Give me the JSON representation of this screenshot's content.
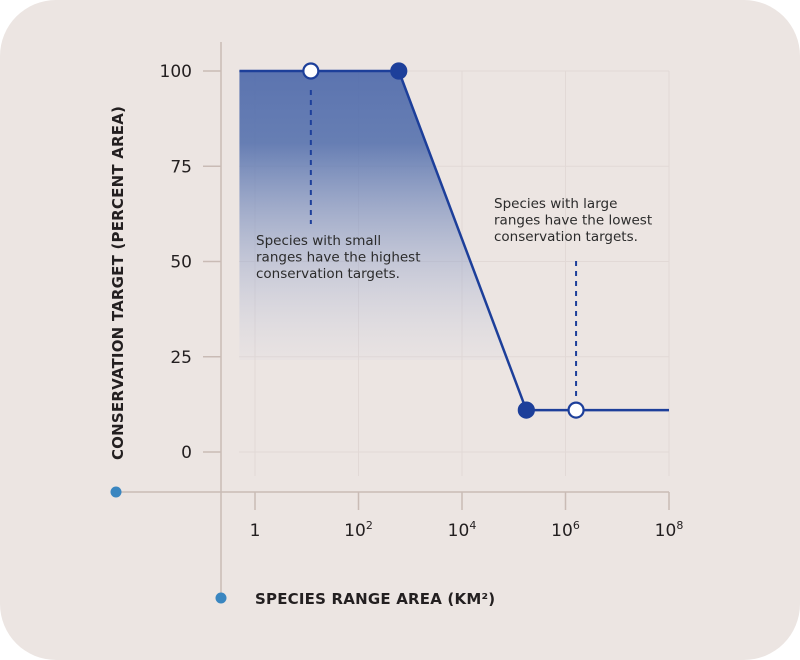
{
  "chart_data": {
    "type": "line",
    "xlabel": "SPECIES RANGE AREA (KM²)",
    "ylabel": "CONSERVATION TARGET (PERCENT AREA)",
    "x_scale": "log",
    "xlim": [
      0.5,
      100000000
    ],
    "ylim": [
      0,
      100
    ],
    "x_ticks": [
      {
        "value": 1,
        "base": "1",
        "exp": ""
      },
      {
        "value": 100,
        "base": "10",
        "exp": "2"
      },
      {
        "value": 10000,
        "base": "10",
        "exp": "4"
      },
      {
        "value": 1000000,
        "base": "10",
        "exp": "6"
      },
      {
        "value": 100000000,
        "base": "10",
        "exp": "8"
      }
    ],
    "y_ticks": [
      {
        "value": 0,
        "label": "0"
      },
      {
        "value": 25,
        "label": "25"
      },
      {
        "value": 50,
        "label": "50"
      },
      {
        "value": 75,
        "label": "75"
      },
      {
        "value": 100,
        "label": "100"
      }
    ],
    "grid": true,
    "series": [
      {
        "x": [
          0.5,
          600,
          175000,
          100000000
        ],
        "y": [
          100,
          100,
          11,
          11
        ]
      }
    ],
    "markers": [
      {
        "x": 12,
        "y": 100,
        "style": "open"
      },
      {
        "x": 600,
        "y": 100,
        "style": "filled"
      },
      {
        "x": 175000,
        "y": 11,
        "style": "filled"
      },
      {
        "x": 1600000,
        "y": 11,
        "style": "open"
      }
    ],
    "annotations": [
      {
        "lines": [
          "Species with small",
          "ranges have the highest",
          "conservation targets."
        ],
        "points_to_marker": 0
      },
      {
        "lines": [
          "Species with large",
          "ranges have the lowest",
          "conservation targets."
        ],
        "points_to_marker": 3
      }
    ],
    "colors": {
      "line": "#1d3f9a",
      "fill": "#4a66a8",
      "axis": "#c9bbb5",
      "grid": "#e2d9d6",
      "dot": "#3a86c0",
      "background": "#ece5e2"
    }
  }
}
